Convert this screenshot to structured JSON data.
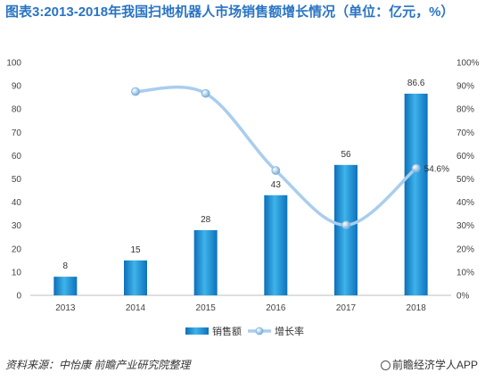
{
  "title": "图表3:2013-2018年我国扫地机器人市场销售额增长情况（单位：亿元，%）",
  "source": "资料来源：中怡康 前瞻产业研究院整理",
  "brand": "前瞻经济学人APP",
  "chart_data": {
    "type": "bar",
    "categories": [
      "2013",
      "2014",
      "2015",
      "2016",
      "2017",
      "2018"
    ],
    "series": [
      {
        "name": "销售额",
        "type": "bar",
        "axis": "left",
        "values": [
          8,
          15,
          28,
          43,
          56,
          86.6
        ],
        "labels": [
          "8",
          "15",
          "28",
          "43",
          "56",
          "86.6"
        ],
        "color": "#1c8fd6"
      },
      {
        "name": "增长率",
        "type": "line",
        "axis": "right",
        "values": [
          null,
          87.5,
          86.7,
          53.6,
          30.2,
          54.6
        ],
        "color": "#a9cdee",
        "labels": [
          "",
          "",
          "",
          "",
          "",
          "54.6%"
        ]
      }
    ],
    "y_left": {
      "min": 0,
      "max": 100,
      "ticks": [
        "0",
        "10",
        "20",
        "30",
        "40",
        "50",
        "60",
        "70",
        "80",
        "90",
        "100"
      ]
    },
    "y_right": {
      "min": 0,
      "max": 100,
      "ticks": [
        "0%",
        "10%",
        "20%",
        "30%",
        "40%",
        "50%",
        "60%",
        "70%",
        "80%",
        "90%",
        "100%"
      ]
    },
    "legend_position": "bottom",
    "grid": false
  }
}
